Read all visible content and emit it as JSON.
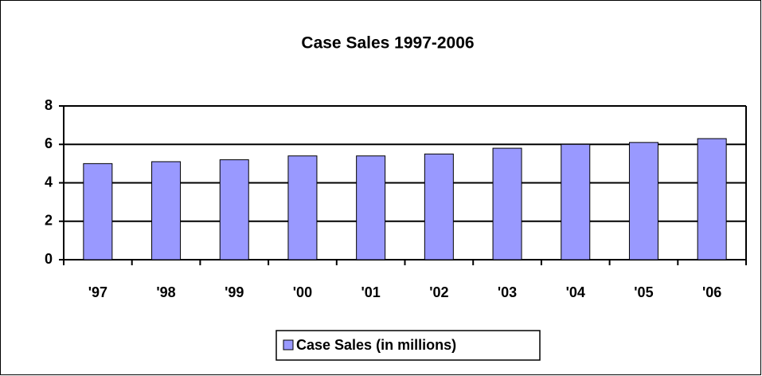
{
  "chart_data": {
    "type": "bar",
    "title": "Case Sales 1997-2006",
    "categories": [
      "'97",
      "'98",
      "'99",
      "'00",
      "'01",
      "'02",
      "'03",
      "'04",
      "'05",
      "'06"
    ],
    "series": [
      {
        "name": "Case Sales (in millions)",
        "color": "#9999ff",
        "values": [
          5.0,
          5.1,
          5.2,
          5.4,
          5.4,
          5.5,
          5.8,
          6.0,
          6.1,
          6.3
        ]
      }
    ],
    "ylim": [
      0,
      8
    ],
    "yticks": [
      0,
      2,
      4,
      6,
      8
    ],
    "grid": true,
    "legend": "bottom"
  }
}
